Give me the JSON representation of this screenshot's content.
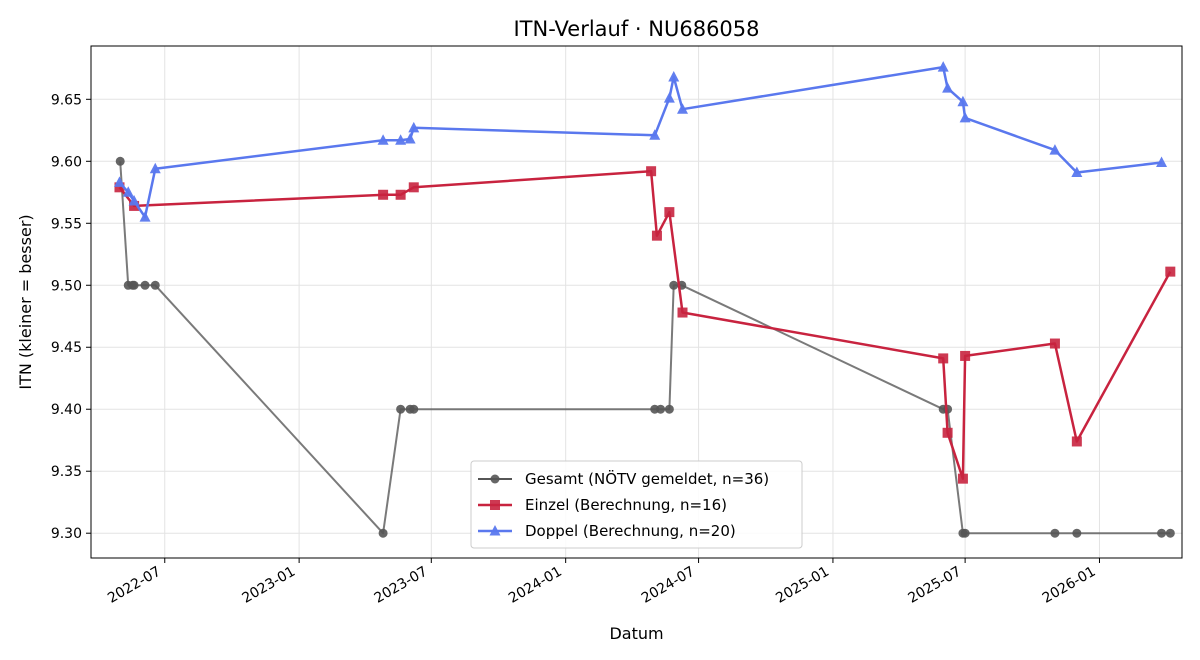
{
  "chart_data": {
    "type": "line",
    "title": "ITN-Verlauf · NU686058",
    "xlabel": "Datum",
    "ylabel": "ITN  (kleiner = besser)",
    "xlim": [
      "2022-03-22",
      "2026-04-24"
    ],
    "ylim": [
      9.28,
      9.693
    ],
    "x_ticks": [
      "2022-07-01",
      "2023-01-01",
      "2023-07-01",
      "2024-01-01",
      "2024-07-01",
      "2025-01-01",
      "2025-07-01",
      "2026-01-01"
    ],
    "x_tick_labels": [
      "2022-07",
      "2023-01",
      "2023-07",
      "2024-01",
      "2024-07",
      "2025-01",
      "2025-07",
      "2026-01"
    ],
    "y_ticks": [
      9.3,
      9.35,
      9.4,
      9.45,
      9.5,
      9.55,
      9.6,
      9.65
    ],
    "y_tick_labels": [
      "9.30",
      "9.35",
      "9.40",
      "9.45",
      "9.50",
      "9.55",
      "9.60",
      "9.65"
    ],
    "grid": true,
    "legend_position": "bottom-center",
    "series": [
      {
        "name": "Gesamt (NÖTV gemeldet, n=36)",
        "color": "#555555",
        "marker": "circle",
        "line_width": 2,
        "points": [
          [
            "2022-05-01",
            9.6
          ],
          [
            "2022-05-12",
            9.5
          ],
          [
            "2022-05-18",
            9.5
          ],
          [
            "2022-05-20",
            9.5
          ],
          [
            "2022-06-04",
            9.5
          ],
          [
            "2022-06-18",
            9.5
          ],
          [
            "2023-04-26",
            9.3
          ],
          [
            "2023-05-20",
            9.4
          ],
          [
            "2023-06-02",
            9.4
          ],
          [
            "2023-06-07",
            9.4
          ],
          [
            "2024-05-02",
            9.4
          ],
          [
            "2024-05-10",
            9.4
          ],
          [
            "2024-05-22",
            9.4
          ],
          [
            "2024-05-28",
            9.5
          ],
          [
            "2024-06-08",
            9.5
          ],
          [
            "2025-06-01",
            9.4
          ],
          [
            "2025-06-07",
            9.4
          ],
          [
            "2025-06-28",
            9.3
          ],
          [
            "2025-07-01",
            9.3
          ],
          [
            "2025-11-01",
            9.3
          ],
          [
            "2025-12-01",
            9.3
          ],
          [
            "2026-03-27",
            9.3
          ],
          [
            "2026-04-08",
            9.3
          ]
        ]
      },
      {
        "name": "Einzel (Berechnung, n=16)",
        "color": "#c8233f",
        "marker": "square",
        "line_width": 2.5,
        "points": [
          [
            "2022-04-30",
            9.579
          ],
          [
            "2022-05-20",
            9.564
          ],
          [
            "2023-04-26",
            9.573
          ],
          [
            "2023-05-20",
            9.573
          ],
          [
            "2023-06-07",
            9.579
          ],
          [
            "2024-04-27",
            9.592
          ],
          [
            "2024-05-05",
            9.54
          ],
          [
            "2024-05-22",
            9.559
          ],
          [
            "2024-06-09",
            9.478
          ],
          [
            "2025-06-01",
            9.441
          ],
          [
            "2025-06-07",
            9.381
          ],
          [
            "2025-06-28",
            9.344
          ],
          [
            "2025-07-01",
            9.443
          ],
          [
            "2025-11-01",
            9.453
          ],
          [
            "2025-12-01",
            9.374
          ],
          [
            "2026-04-08",
            9.511
          ]
        ]
      },
      {
        "name": "Doppel (Berechnung, n=20)",
        "color": "#5a78ee",
        "marker": "triangle",
        "line_width": 2.5,
        "points": [
          [
            "2022-04-30",
            9.583
          ],
          [
            "2022-05-12",
            9.575
          ],
          [
            "2022-05-20",
            9.568
          ],
          [
            "2022-06-04",
            9.555
          ],
          [
            "2022-06-18",
            9.594
          ],
          [
            "2023-04-26",
            9.617
          ],
          [
            "2023-05-20",
            9.617
          ],
          [
            "2023-06-02",
            9.618
          ],
          [
            "2023-06-07",
            9.627
          ],
          [
            "2024-05-02",
            9.621
          ],
          [
            "2024-05-22",
            9.651
          ],
          [
            "2024-05-28",
            9.668
          ],
          [
            "2024-06-09",
            9.642
          ],
          [
            "2025-06-01",
            9.676
          ],
          [
            "2025-06-07",
            9.659
          ],
          [
            "2025-06-28",
            9.648
          ],
          [
            "2025-07-01",
            9.635
          ],
          [
            "2025-11-01",
            9.609
          ],
          [
            "2025-12-01",
            9.591
          ],
          [
            "2026-03-27",
            9.599
          ]
        ]
      }
    ]
  }
}
